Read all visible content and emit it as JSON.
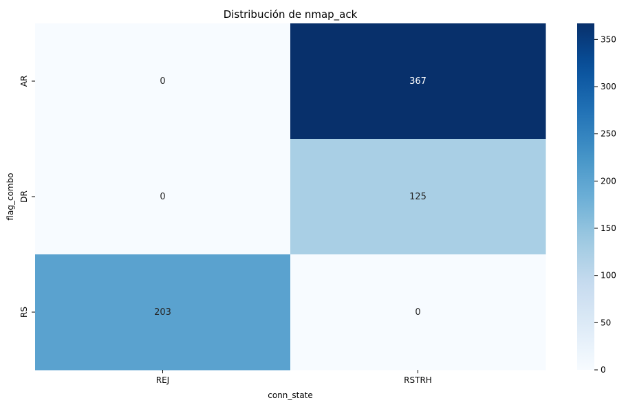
{
  "chart_data": {
    "type": "heatmap",
    "title": "Distribución de nmap_ack",
    "xlabel": "conn_state",
    "ylabel": "flag_combo",
    "x_categories": [
      "REJ",
      "RSTRH"
    ],
    "y_categories": [
      "AR",
      "DR",
      "RS"
    ],
    "values": [
      [
        0,
        367
      ],
      [
        0,
        125
      ],
      [
        203,
        0
      ]
    ],
    "value_labels": [
      [
        "0",
        "367"
      ],
      [
        "0",
        "125"
      ],
      [
        "203",
        "0"
      ]
    ],
    "colormap": "Blues",
    "colorbar": {
      "range": [
        0,
        367
      ],
      "ticks": [
        0,
        50,
        100,
        150,
        200,
        250,
        300,
        350
      ],
      "tick_labels": [
        "0",
        "50",
        "100",
        "150",
        "200",
        "250",
        "300",
        "350"
      ]
    }
  }
}
